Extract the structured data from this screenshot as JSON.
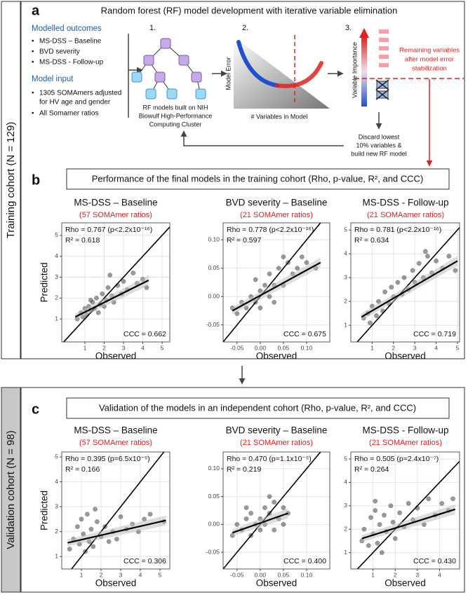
{
  "cohort_labels": {
    "training": "Training cohort (N = 129)",
    "validation": "Validation cohort (N = 98)"
  },
  "panel_a": {
    "label": "a",
    "title": "Random forest (RF) model development with iterative variable elimination",
    "outcomes_heading": "Modelled outcomes",
    "outcomes": [
      "MS-DSS – Baseline",
      "BVD severity",
      "MS-DSS - Follow-up"
    ],
    "input_heading": "Model input",
    "inputs": [
      "1305 SOMAmers adjusted",
      "for HV age and gender",
      "All Somamer ratios"
    ],
    "steps": [
      "1.",
      "2.",
      "3."
    ],
    "step1_caption": [
      "RF models built on NIH",
      "Biowulf High-Performance",
      "Computing Cluster"
    ],
    "step2_ylabel": "Model Error",
    "step2_xlabel": "# Variables in Model",
    "step3_ylabel": "Variable Importance",
    "step3_note": [
      "Remaining variables",
      "after model error",
      "stabilization"
    ],
    "loop_note": [
      "Discard lowest",
      "10% variables &",
      "build new RF model"
    ]
  },
  "panel_b": {
    "label": "b",
    "heading": "Performance of the final models in the training cohort (Rho, p-value, R², and CCC)",
    "charts": [
      {
        "type": "scatter",
        "title": "MS-DSS – Baseline",
        "subtitle": "(57 SOMAmer ratios)",
        "subtitle_color": "#e02020",
        "ylabel": "Predicted",
        "xlabel": "Observed",
        "stats": [
          "Rho = 0.767 (p<2.2x10⁻¹⁶)",
          "R² = 0.618",
          "CCC = 0.662"
        ],
        "xlim": [
          -0.2,
          5.4
        ],
        "ylim": [
          -0.1,
          5.6
        ],
        "xticks": [
          1,
          2,
          3,
          4,
          5
        ],
        "yticks": [
          1,
          2,
          3,
          4,
          5
        ],
        "grid": true,
        "color": "#555555",
        "x": [
          0.6,
          0.8,
          0.9,
          1.0,
          1.1,
          1.2,
          1.3,
          1.4,
          1.5,
          1.6,
          1.7,
          1.8,
          1.9,
          2.0,
          2.1,
          2.2,
          2.4,
          2.5,
          2.7,
          2.9,
          3.0,
          3.2,
          3.5,
          3.7,
          4.0,
          4.2,
          2.3,
          1.3
        ],
        "values": [
          1.0,
          1.3,
          1.1,
          1.5,
          1.2,
          1.6,
          1.4,
          1.8,
          1.5,
          2.0,
          1.3,
          1.7,
          2.2,
          1.6,
          1.9,
          2.5,
          2.1,
          1.8,
          2.6,
          2.2,
          2.8,
          2.4,
          3.2,
          2.7,
          2.9,
          2.5,
          3.1,
          1.9
        ],
        "fit": {
          "x": [
            0.5,
            4.3
          ],
          "y": [
            1.1,
            2.85
          ]
        }
      },
      {
        "type": "scatter",
        "title": "BVD severity – Baseline",
        "subtitle": "(21 SOMAmer ratios)",
        "subtitle_color": "#e02020",
        "xlabel": "Observed",
        "stats": [
          "Rho = 0.778 (p<2.2x10⁻¹⁶)",
          "R² = 0.597",
          "CCC = 0.675"
        ],
        "xlim": [
          -0.08,
          0.15
        ],
        "ylim": [
          -0.08,
          0.13
        ],
        "xticks": [
          -0.05,
          {
            "value": 0,
            "label": "0.00"
          },
          0.05,
          {
            "value": 0.1,
            "label": "0.10"
          }
        ],
        "yticks": [
          -0.05,
          {
            "value": 0,
            "label": "0.00"
          },
          0.05,
          {
            "value": 0.1,
            "label": "0.10"
          }
        ],
        "grid": true,
        "color": "#555555",
        "x": [
          -0.06,
          -0.05,
          -0.04,
          -0.03,
          -0.02,
          -0.01,
          0.0,
          0.0,
          0.01,
          0.02,
          0.02,
          0.03,
          0.04,
          0.05,
          0.06,
          0.07,
          0.08,
          0.09,
          0.1,
          0.12,
          -0.01,
          0.03,
          0.05
        ],
        "values": [
          -0.02,
          -0.03,
          -0.01,
          -0.02,
          0.0,
          -0.01,
          0.01,
          -0.02,
          0.02,
          0.0,
          0.04,
          0.02,
          0.05,
          0.02,
          0.06,
          0.04,
          0.05,
          0.07,
          0.06,
          0.05,
          0.03,
          -0.01,
          0.07
        ],
        "fit": {
          "x": [
            -0.06,
            0.13
          ],
          "y": [
            -0.025,
            0.06
          ]
        }
      },
      {
        "type": "scatter",
        "title": "MS-DSS - Follow-up",
        "subtitle": "(21 SOMAamer ratios)",
        "subtitle_color": "#e02020",
        "xlabel": "Observed",
        "stats": [
          "Rho = 0.781 (p<2.2x10⁻¹⁶)",
          "R² = 0.634",
          "CCC = 0.719"
        ],
        "xlim": [
          0,
          5.1
        ],
        "ylim": [
          0.3,
          5.3
        ],
        "xticks": [
          1,
          2,
          3,
          4,
          5
        ],
        "yticks": [
          1,
          2,
          3,
          4,
          5
        ],
        "grid": true,
        "color": "#555555",
        "x": [
          0.6,
          0.8,
          0.9,
          1.0,
          1.2,
          1.3,
          1.5,
          1.6,
          1.8,
          1.9,
          2.0,
          2.2,
          2.4,
          2.5,
          2.7,
          2.9,
          3.0,
          3.2,
          3.4,
          3.6,
          3.8,
          4.0,
          4.3,
          4.6,
          4.9,
          3.5
        ],
        "values": [
          1.3,
          1.5,
          1.1,
          1.8,
          1.4,
          2.0,
          1.6,
          2.4,
          1.9,
          2.6,
          2.2,
          2.8,
          2.3,
          3.0,
          2.5,
          3.3,
          2.8,
          3.6,
          3.0,
          3.9,
          3.2,
          3.7,
          3.4,
          3.9,
          3.3,
          4.1
        ],
        "fit": {
          "x": [
            0.5,
            5.0
          ],
          "y": [
            1.35,
            3.7
          ]
        }
      }
    ]
  },
  "panel_c": {
    "label": "c",
    "heading": "Validation of the models in an independent cohort (Rho, p-value, R², and CCC)",
    "charts": [
      {
        "type": "scatter",
        "title": "MS-DSS – Baseline",
        "subtitle": "(57 SOMAmer ratios)",
        "subtitle_color": "#e02020",
        "ylabel": "Predicted",
        "xlabel": "Observed",
        "stats": [
          "Rho = 0.395 (p=6.5x10⁻⁵)",
          "R² = 0.166",
          "CCC = 0.306"
        ],
        "xlim": [
          0,
          5.5
        ],
        "ylim": [
          0.5,
          5.2
        ],
        "xticks": [
          1,
          2,
          3,
          4,
          5
        ],
        "yticks": [
          1,
          2,
          3,
          4,
          5
        ],
        "grid": true,
        "color": "#555555",
        "x": [
          0.4,
          0.6,
          0.8,
          0.9,
          1.0,
          1.1,
          1.2,
          1.3,
          1.4,
          1.5,
          1.6,
          1.8,
          2.0,
          2.2,
          2.4,
          2.6,
          2.8,
          3.0,
          3.3,
          3.6,
          3.9,
          4.2,
          4.5,
          5.2,
          1.7
        ],
        "values": [
          1.3,
          1.7,
          2.2,
          1.5,
          2.5,
          1.9,
          1.2,
          2.7,
          1.6,
          2.1,
          1.4,
          2.4,
          1.8,
          2.2,
          1.6,
          2.0,
          1.7,
          2.6,
          2.1,
          2.3,
          2.0,
          2.5,
          2.7,
          2.4,
          2.9
        ],
        "fit": {
          "x": [
            0.3,
            5.3
          ],
          "y": [
            1.55,
            2.45
          ]
        }
      },
      {
        "type": "scatter",
        "title": "BVD severity – Baseline",
        "subtitle": "(21 SOMAmer ratios)",
        "subtitle_color": "#e02020",
        "xlabel": "Observed",
        "stats": [
          "Rho = 0.470 (p=1.1x10⁻⁵)",
          "R² = 0.219",
          "CCC = 0.400"
        ],
        "xlim": [
          -0.08,
          0.15
        ],
        "ylim": [
          -0.08,
          0.13
        ],
        "xticks": [
          -0.05,
          {
            "value": 0,
            "label": "0.00"
          },
          0.05,
          {
            "value": 0.1,
            "label": "0.10"
          }
        ],
        "yticks": [
          -0.05,
          {
            "value": 0,
            "label": "0.00"
          },
          0.05,
          {
            "value": 0.1,
            "label": "0.10"
          }
        ],
        "grid": true,
        "color": "#555555",
        "x": [
          -0.06,
          -0.05,
          -0.04,
          -0.03,
          -0.02,
          -0.02,
          -0.01,
          0.0,
          0.0,
          0.01,
          0.01,
          0.02,
          0.03,
          0.03,
          0.04,
          0.05,
          0.05,
          -0.03,
          0.02,
          0.06
        ],
        "values": [
          -0.02,
          0.0,
          -0.01,
          0.01,
          -0.02,
          0.02,
          0.0,
          0.01,
          -0.01,
          0.03,
          0.0,
          0.02,
          0.04,
          -0.01,
          0.01,
          0.03,
          0.0,
          0.03,
          0.05,
          0.02
        ],
        "fit": {
          "x": [
            -0.06,
            0.06
          ],
          "y": [
            -0.015,
            0.02
          ]
        }
      },
      {
        "type": "scatter",
        "title": "MS-DSS - Follow-up",
        "subtitle": "(21 SOMAmer ratios)",
        "subtitle_color": "#e02020",
        "xlabel": "Observed",
        "stats": [
          "Rho = 0.505 (p=2.4x10⁻⁷)",
          "R² = 0.264",
          "CCC = 0.430"
        ],
        "xlim": [
          0,
          4.9
        ],
        "ylim": [
          0.3,
          5.3
        ],
        "xticks": [
          1,
          2,
          3,
          4
        ],
        "yticks": [
          1,
          2,
          3,
          4,
          5
        ],
        "grid": true,
        "color": "#555555",
        "x": [
          0.5,
          0.6,
          0.8,
          0.9,
          1.0,
          1.1,
          1.2,
          1.3,
          1.4,
          1.5,
          1.6,
          1.8,
          1.9,
          2.0,
          2.2,
          2.4,
          2.6,
          2.8,
          3.0,
          3.3,
          3.5,
          3.8,
          4.1,
          4.4,
          4.6,
          1.1
        ],
        "values": [
          1.5,
          2.0,
          1.3,
          2.5,
          1.8,
          2.8,
          1.4,
          2.2,
          1.0,
          2.6,
          1.9,
          3.0,
          2.3,
          1.6,
          2.7,
          2.1,
          3.1,
          2.4,
          2.9,
          2.2,
          3.3,
          2.6,
          3.1,
          2.8,
          3.3,
          3.2
        ],
        "fit": {
          "x": [
            0.5,
            4.7
          ],
          "y": [
            1.6,
            2.85
          ]
        }
      }
    ]
  }
}
